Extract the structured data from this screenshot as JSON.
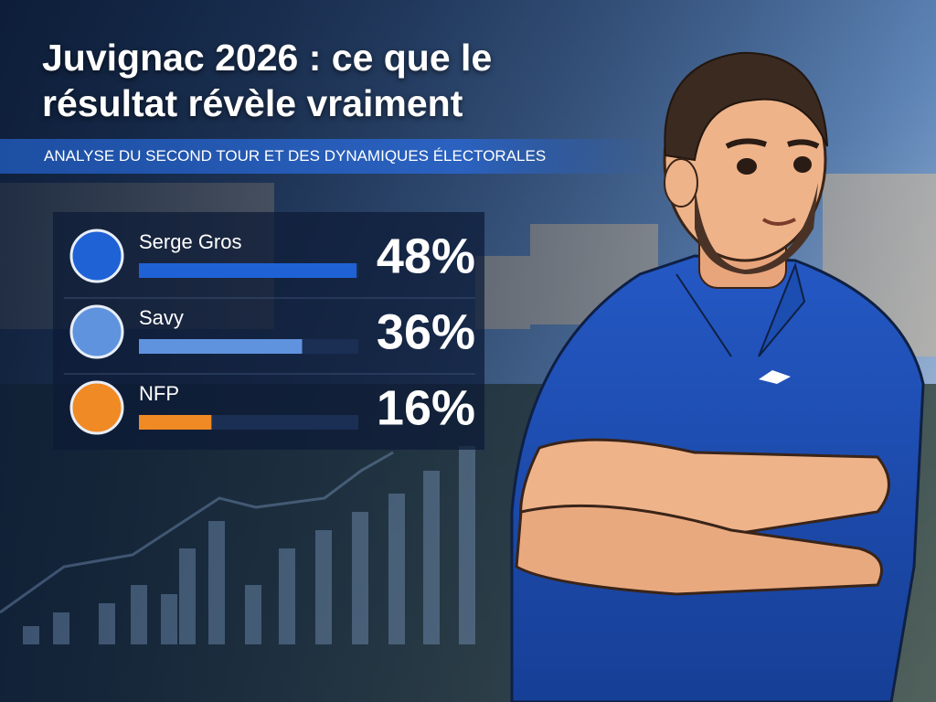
{
  "chart_data": {
    "type": "bar",
    "title": "Juvignac 2026 : ce que le résultat révèle vraiment",
    "subtitle": "ANALYSE DU SECOND TOUR ET DES DYNAMIQUES ÉLECTORALES",
    "categories": [
      "Serge Gros",
      "Savy",
      "NFP"
    ],
    "values": [
      48,
      36,
      16
    ],
    "value_labels": [
      "48%",
      "36%",
      "16%"
    ],
    "colors": [
      "#1f62d6",
      "#5f93de",
      "#f08a24"
    ]
  }
}
